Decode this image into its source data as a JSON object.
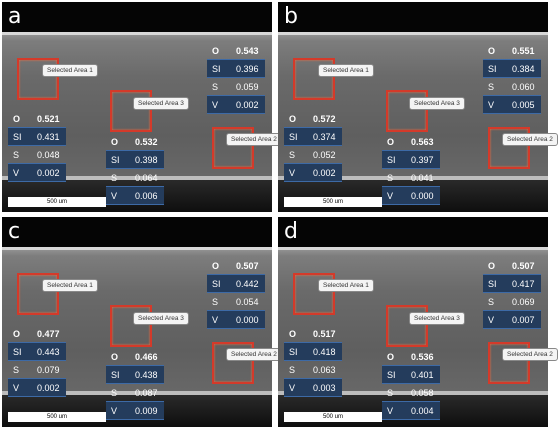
{
  "panels": [
    {
      "letter": "a",
      "scale_label": "500 um",
      "areas": [
        {
          "label": "Selected Area 1",
          "rows": [
            [
              "O",
              "0.521"
            ],
            [
              "SI",
              "0.431"
            ],
            [
              "S",
              "0.048"
            ],
            [
              "V",
              "0.002"
            ]
          ]
        },
        {
          "label": "Selected Area 3",
          "rows": [
            [
              "O",
              "0.532"
            ],
            [
              "SI",
              "0.398"
            ],
            [
              "S",
              "0.064"
            ],
            [
              "V",
              "0.006"
            ]
          ]
        },
        {
          "label": "Selected Area 2",
          "rows": [
            [
              "O",
              "0.543"
            ],
            [
              "SI",
              "0.396"
            ],
            [
              "S",
              "0.059"
            ],
            [
              "V",
              "0.002"
            ]
          ]
        }
      ]
    },
    {
      "letter": "b",
      "scale_label": "500 um",
      "areas": [
        {
          "label": "Selected Area 1",
          "rows": [
            [
              "O",
              "0.572"
            ],
            [
              "SI",
              "0.374"
            ],
            [
              "S",
              "0.052"
            ],
            [
              "V",
              "0.002"
            ]
          ]
        },
        {
          "label": "Selected Area 3",
          "rows": [
            [
              "O",
              "0.563"
            ],
            [
              "SI",
              "0.397"
            ],
            [
              "S",
              "0.041"
            ],
            [
              "V",
              "0.000"
            ]
          ]
        },
        {
          "label": "Selected Area 2",
          "rows": [
            [
              "O",
              "0.551"
            ],
            [
              "SI",
              "0.384"
            ],
            [
              "S",
              "0.060"
            ],
            [
              "V",
              "0.005"
            ]
          ]
        }
      ]
    },
    {
      "letter": "c",
      "scale_label": "500 um",
      "areas": [
        {
          "label": "Selected Area 1",
          "rows": [
            [
              "O",
              "0.477"
            ],
            [
              "SI",
              "0.443"
            ],
            [
              "S",
              "0.079"
            ],
            [
              "V",
              "0.002"
            ]
          ]
        },
        {
          "label": "Selected Area 3",
          "rows": [
            [
              "O",
              "0.466"
            ],
            [
              "SI",
              "0.438"
            ],
            [
              "S",
              "0.087"
            ],
            [
              "V",
              "0.009"
            ]
          ]
        },
        {
          "label": "Selected Area 2",
          "rows": [
            [
              "O",
              "0.507"
            ],
            [
              "SI",
              "0.442"
            ],
            [
              "S",
              "0.054"
            ],
            [
              "V",
              "0.000"
            ]
          ]
        }
      ]
    },
    {
      "letter": "d",
      "scale_label": "500 um",
      "areas": [
        {
          "label": "Selected Area 1",
          "rows": [
            [
              "O",
              "0.517"
            ],
            [
              "SI",
              "0.418"
            ],
            [
              "S",
              "0.063"
            ],
            [
              "V",
              "0.003"
            ]
          ]
        },
        {
          "label": "Selected Area 3",
          "rows": [
            [
              "O",
              "0.536"
            ],
            [
              "SI",
              "0.401"
            ],
            [
              "S",
              "0.058"
            ],
            [
              "V",
              "0.004"
            ]
          ]
        },
        {
          "label": "Selected Area 2",
          "rows": [
            [
              "O",
              "0.507"
            ],
            [
              "SI",
              "0.417"
            ],
            [
              "S",
              "0.069"
            ],
            [
              "V",
              "0.007"
            ]
          ]
        }
      ]
    }
  ]
}
